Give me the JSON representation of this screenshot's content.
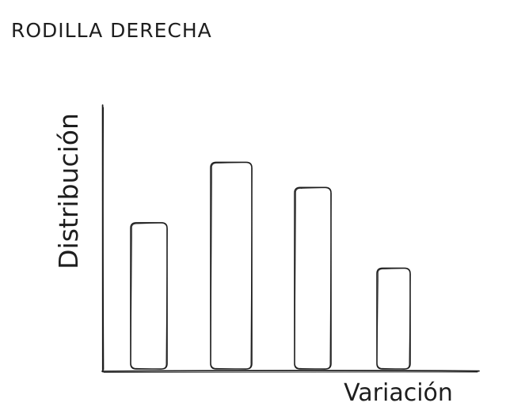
{
  "title": "RODILLA DERECHA",
  "chart_data": {
    "type": "bar",
    "categories": [
      "",
      "",
      "",
      ""
    ],
    "values": [
      5.8,
      8.2,
      7.2,
      4.0
    ],
    "ylabel": "Distribución",
    "xlabel": "Variación",
    "ylim": [
      0,
      10
    ],
    "grid": false,
    "legend": "none",
    "bar_fill": "#ffffff",
    "stroke_color": "#1e1e1e",
    "style": "hand-drawn sketch"
  }
}
